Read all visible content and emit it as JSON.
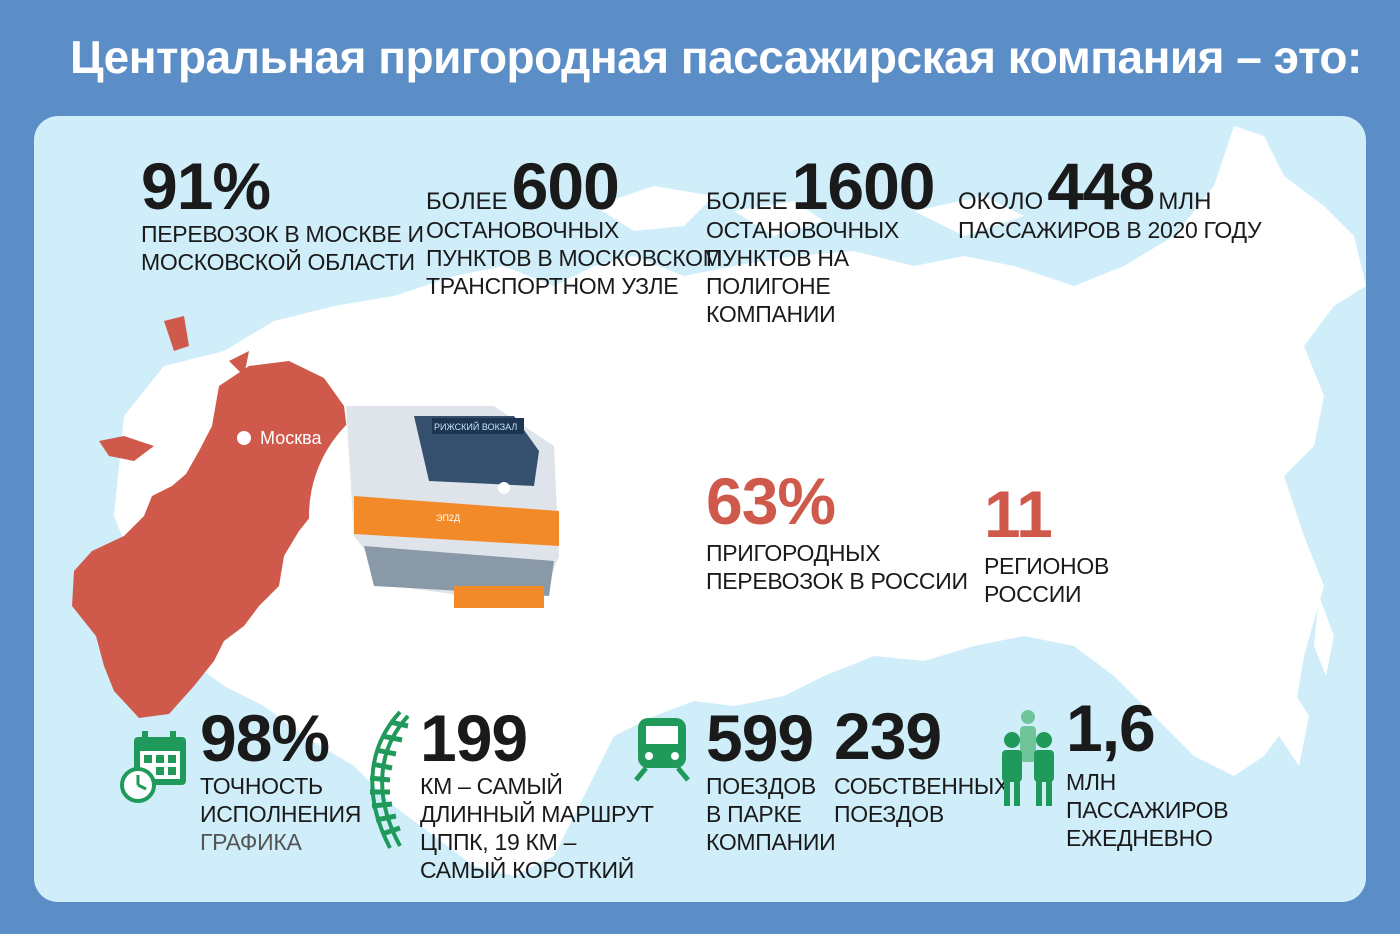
{
  "title": "Центральная пригородная пассажирская компания – это:",
  "map": {
    "city_label": "Москва",
    "train_sign": "РИЖСКИЙ ВОКЗАЛ",
    "train_model": "ЭП2Д"
  },
  "colors": {
    "background": "#5b8ec6",
    "panel": "#cfeefa",
    "accent_red": "#cf5a4c",
    "icon_green": "#1f9a5a"
  },
  "stats": {
    "s91": {
      "value": "91%",
      "desc1": "ПЕРЕВОЗОК В МОСКВЕ И",
      "desc2": "МОСКОВСКОЙ ОБЛАСТИ"
    },
    "s600": {
      "prefix": "БОЛЕЕ",
      "value": "600",
      "desc1": "ОСТАНОВОЧНЫХ",
      "desc2": "ПУНКТОВ В МОСКОВСКОМ",
      "desc3": "ТРАНСПОРТНОМ УЗЛЕ"
    },
    "s1600": {
      "prefix": "БОЛЕЕ",
      "value": "1600",
      "desc1": "ОСТАНОВОЧНЫХ",
      "desc2": "ПУНКТОВ НА",
      "desc3": "ПОЛИГОНЕ",
      "desc4": "КОМПАНИИ"
    },
    "s448": {
      "prefix": "ОКОЛО",
      "value": "448",
      "suffix": "МЛН",
      "desc1": "ПАССАЖИРОВ В 2020 ГОДУ"
    },
    "s63": {
      "value": "63%",
      "desc1": "ПРИГОРОДНЫХ",
      "desc2": "ПЕРЕВОЗОК В РОССИИ"
    },
    "s11": {
      "value": "11",
      "desc1": "РЕГИОНОВ",
      "desc2": "РОССИИ"
    },
    "s98": {
      "value": "98%",
      "desc1": "ТОЧНОСТЬ",
      "desc2": "ИСПОЛНЕНИЯ",
      "desc3": "ГРАФИКА",
      "icon": "calendar-clock-icon"
    },
    "s199": {
      "value": "199",
      "desc1": "КМ – САМЫЙ",
      "desc2": "ДЛИННЫЙ МАРШРУТ",
      "desc3": "ЦППК, 19 КМ –",
      "desc4": "САМЫЙ КОРОТКИЙ",
      "icon": "railway-track-icon"
    },
    "s599": {
      "value": "599",
      "desc1": "ПОЕЗДОВ",
      "desc2": "В ПАРКЕ",
      "desc3": "КОМПАНИИ",
      "icon": "train-icon"
    },
    "s239": {
      "value": "239",
      "desc1": "СОБСТВЕННЫХ",
      "desc2": "ПОЕЗДОВ"
    },
    "s16": {
      "value": "1,6",
      "desc1": "МЛН",
      "desc2": "ПАССАЖИРОВ",
      "desc3": "ЕЖЕДНЕВНО",
      "icon": "people-icon"
    }
  }
}
